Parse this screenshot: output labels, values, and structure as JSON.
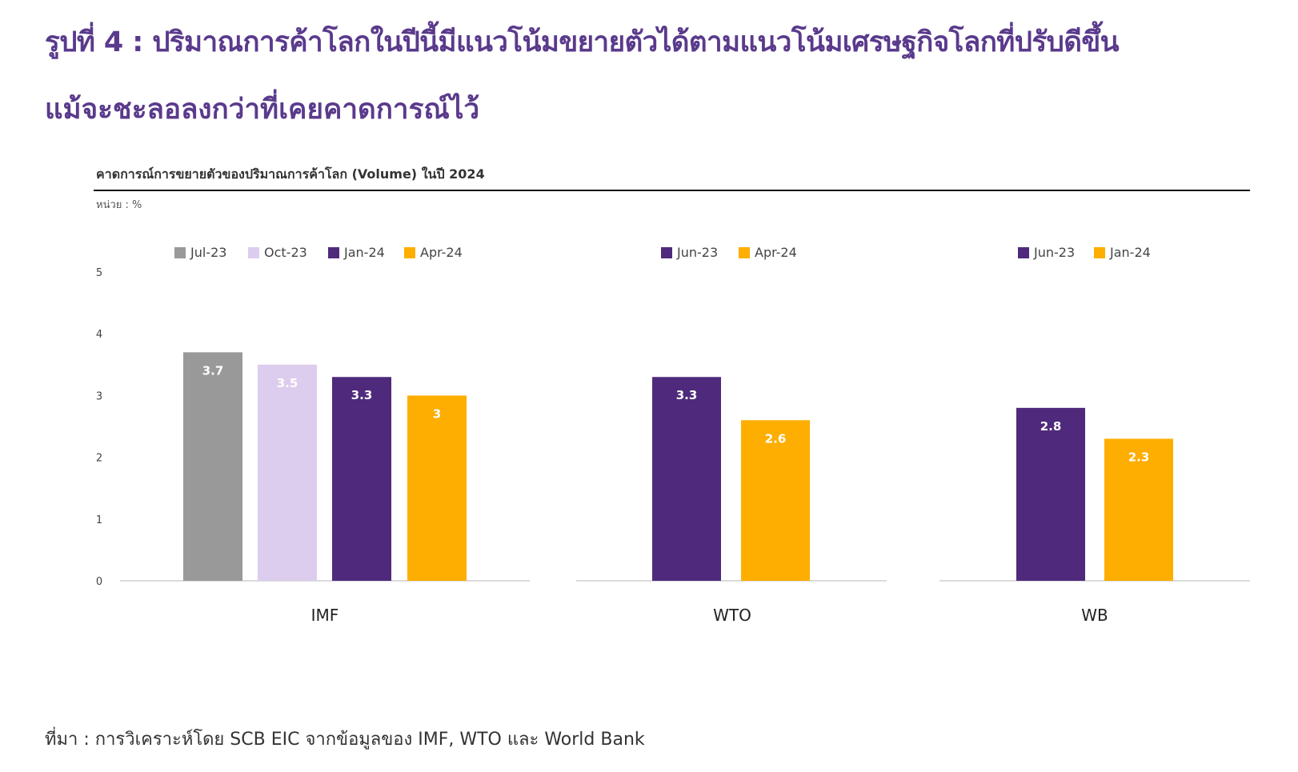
{
  "header": {
    "title_line1": "รูปที่ 4 : ปริมาณการค้าโลกในปีนี้มีแนวโน้มขยายตัวได้ตามแนวโน้มเศรษฐกิจโลกที่ปรับดีขึ้น",
    "title_line2": "แม้จะชะลอลงกว่าที่เคยคาดการณ์ไว้"
  },
  "chart_data": {
    "type": "bar",
    "title": "คาดการณ์การขยายตัวของปริมาณการค้าโลก (Volume) ในปี 2024",
    "unit_label": "หน่วย : %",
    "ylim": [
      0,
      5
    ],
    "yticks": [
      "0",
      "1",
      "2",
      "3",
      "4",
      "5"
    ],
    "grid": false,
    "groups": [
      {
        "name": "IMF",
        "bars": [
          {
            "series": "Jul-23",
            "value": 3.7,
            "label": "3.7",
            "color": "#999999",
            "text_color": "#ffffff"
          },
          {
            "series": "Oct-23",
            "value": 3.5,
            "label": "3.5",
            "color": "#dccdee",
            "text_color": "#ffffff"
          },
          {
            "series": "Jan-24",
            "value": 3.3,
            "label": "3.3",
            "color": "#4f2a7c",
            "text_color": "#ffffff"
          },
          {
            "series": "Apr-24",
            "value": 3.0,
            "label": "3",
            "color": "#fdae00",
            "text_color": "#ffffff"
          }
        ]
      },
      {
        "name": "WTO",
        "bars": [
          {
            "series": "Jun-23",
            "value": 3.3,
            "label": "3.3",
            "color": "#4f2a7c",
            "text_color": "#ffffff"
          },
          {
            "series": "Apr-24",
            "value": 2.6,
            "label": "2.6",
            "color": "#fdae00",
            "text_color": "#ffffff"
          }
        ]
      },
      {
        "name": "WB",
        "bars": [
          {
            "series": "Jun-23",
            "value": 2.8,
            "label": "2.8",
            "color": "#4f2a7c",
            "text_color": "#ffffff"
          },
          {
            "series": "Jan-24",
            "value": 2.3,
            "label": "2.3",
            "color": "#fdae00",
            "text_color": "#ffffff"
          }
        ]
      }
    ]
  },
  "footer": {
    "source": "ที่มา : การวิเคราะห์โดย SCB EIC จากข้อมูลของ IMF, WTO และ World Bank"
  }
}
